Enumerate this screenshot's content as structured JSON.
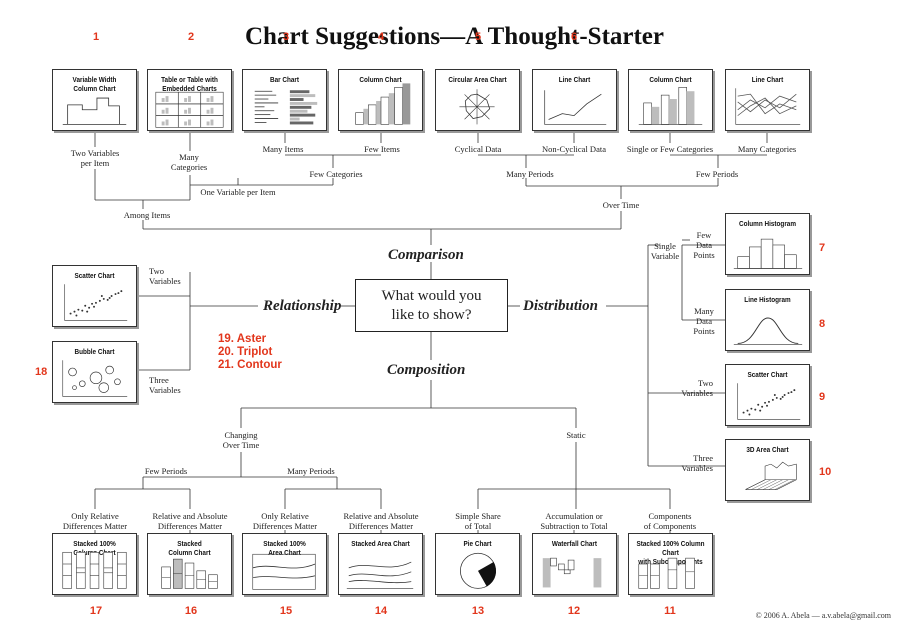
{
  "title": "Chart Suggestions—A Thought-Starter",
  "center_question": [
    "What would you",
    "like to show?"
  ],
  "categories": {
    "comparison": "Comparison",
    "relationship": "Relationship",
    "distribution": "Distribution",
    "composition": "Composition"
  },
  "charts": [
    {
      "id": 1,
      "num": "1",
      "title": "Variable Width\nColumn Chart"
    },
    {
      "id": 2,
      "num": "2",
      "title": "Table or Table with\nEmbedded Charts"
    },
    {
      "id": 3,
      "num": "3",
      "title": "Bar Chart"
    },
    {
      "id": 4,
      "num": "4",
      "title": "Column Chart"
    },
    {
      "id": 5,
      "num": "5",
      "title": "Circular Area Chart"
    },
    {
      "id": 6,
      "num": "6",
      "title": "Line Chart"
    },
    {
      "id": 7,
      "num": "",
      "title": "Column Chart"
    },
    {
      "id": 8,
      "num": "",
      "title": "Line Chart"
    },
    {
      "id": 9,
      "num": "7",
      "title": "Column Histogram"
    },
    {
      "id": 10,
      "num": "8",
      "title": "Line Histogram"
    },
    {
      "id": 11,
      "num": "9",
      "title": "Scatter Chart"
    },
    {
      "id": 12,
      "num": "10",
      "title": "3D Area Chart"
    },
    {
      "id": 13,
      "num": "",
      "title": "Scatter Chart"
    },
    {
      "id": 14,
      "num": "18",
      "title": "Bubble Chart"
    },
    {
      "id": 15,
      "num": "17",
      "title": "Stacked 100%\nColumn Chart"
    },
    {
      "id": 16,
      "num": "16",
      "title": "Stacked\nColumn Chart"
    },
    {
      "id": 17,
      "num": "15",
      "title": "Stacked 100%\nArea Chart"
    },
    {
      "id": 18,
      "num": "14",
      "title": "Stacked Area Chart"
    },
    {
      "id": 19,
      "num": "13",
      "title": "Pie Chart"
    },
    {
      "id": 20,
      "num": "12",
      "title": "Waterfall Chart"
    },
    {
      "id": 21,
      "num": "11",
      "title": "Stacked 100% Column Chart\nwith Subcomponents"
    }
  ],
  "extra_numbers": [
    "19. Aster",
    "20. Triplot",
    "21. Contour"
  ],
  "labels": {
    "two_vars_per_item": "Two Variables\nper Item",
    "many_categories_left": "Many\nCategories",
    "many_items": "Many Items",
    "few_items": "Few Items",
    "cyclical": "Cyclical Data",
    "non_cyclical": "Non-Cyclical Data",
    "single_few_cat": "Single or Few Categories",
    "many_categories_right": "Many Categories",
    "few_categories": "Few Categories",
    "many_periods_top": "Many Periods",
    "few_periods_top": "Few Periods",
    "one_var_per_item": "One Variable per Item",
    "among_items": "Among Items",
    "over_time": "Over Time",
    "two_variables_rel": "Two\nVariables",
    "three_variables_rel": "Three\nVariables",
    "single_variable": "Single\nVariable",
    "few_data_points": "Few\nData\nPoints",
    "many_data_points": "Many\nData\nPoints",
    "two_variables_dist": "Two\nVariables",
    "three_variables_dist": "Three\nVariables",
    "changing_over_time": "Changing\nOver Time",
    "static": "Static",
    "few_periods_bottom": "Few Periods",
    "many_periods_bottom": "Many Periods",
    "only_relative_1": "Only Relative\nDifferences Matter",
    "rel_abs_1": "Relative and Absolute\nDifferences Matter",
    "only_relative_2": "Only Relative\nDifferences Matter",
    "rel_abs_2": "Relative and Absolute\nDifferences Matter",
    "simple_share": "Simple Share\nof Total",
    "accumulation": "Accumulation or\nSubtraction to Total",
    "components": "Components\nof Components"
  },
  "copyright": "© 2006  A. Abela — a.v.abela@gmail.com",
  "colors": {
    "accent_red": "#e2361c",
    "line": "#333333",
    "bar_gray": "#bdbdbd"
  }
}
